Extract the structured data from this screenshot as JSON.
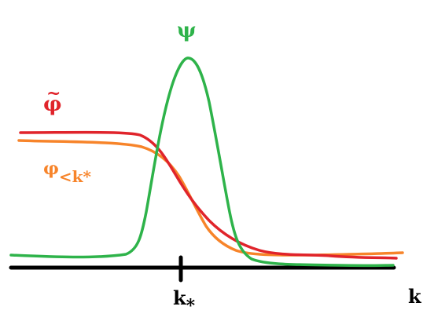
{
  "labels": {
    "psi": "ψ",
    "phi_tilde_letter": "φ",
    "phi_tilde_mark": "~",
    "phi_lt_letter": "φ",
    "phi_lt_sub_prefix": "<k",
    "phi_lt_sub_star": "*",
    "kstar_letter": "k",
    "kstar_star": "*",
    "k_axis": "k"
  },
  "colors": {
    "psi": "#2eb34a",
    "phi_tilde": "#e0242b",
    "phi_lt": "#f7842a",
    "axis": "#000000"
  }
}
